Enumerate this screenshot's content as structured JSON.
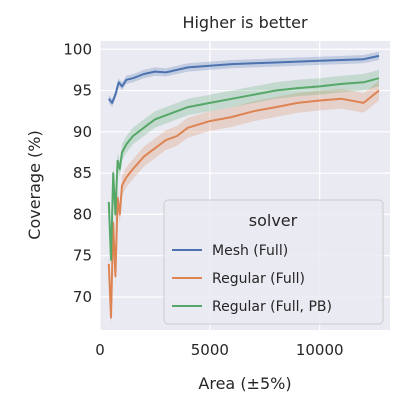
{
  "chart_data": {
    "type": "line",
    "title": "Higher is better",
    "xlabel": "Area (±5%)",
    "ylabel": "Coverage (%)",
    "xlim": [
      0,
      13200
    ],
    "ylim": [
      66,
      101
    ],
    "xticks": [
      0,
      5000,
      10000
    ],
    "yticks": [
      70,
      75,
      80,
      85,
      90,
      95,
      100
    ],
    "grid": true,
    "legend": {
      "title": "solver",
      "placement": "lower-right"
    },
    "series": [
      {
        "name": "Mesh (Full)",
        "color": "#4c72b0",
        "x": [
          400,
          550,
          700,
          850,
          1000,
          1200,
          1500,
          2000,
          2500,
          3000,
          3500,
          4000,
          5000,
          6000,
          7000,
          8000,
          9000,
          10000,
          11000,
          12000,
          12700
        ],
        "y": [
          94.0,
          93.5,
          94.5,
          96.0,
          95.5,
          96.3,
          96.5,
          97.0,
          97.3,
          97.2,
          97.5,
          97.8,
          98.0,
          98.2,
          98.3,
          98.4,
          98.5,
          98.6,
          98.7,
          98.8,
          99.2
        ]
      },
      {
        "name": "Regular (Full)",
        "color": "#dd8452",
        "x": [
          400,
          500,
          600,
          700,
          800,
          900,
          1000,
          1200,
          1500,
          2000,
          2500,
          3000,
          3500,
          4000,
          5000,
          6000,
          7000,
          8000,
          9000,
          10000,
          11000,
          12000,
          12700
        ],
        "y": [
          74.0,
          67.5,
          79.0,
          72.5,
          82.0,
          80.0,
          83.5,
          84.5,
          85.5,
          87.0,
          88.0,
          89.0,
          89.5,
          90.5,
          91.3,
          91.8,
          92.5,
          93.0,
          93.5,
          93.8,
          94.0,
          93.5,
          95.0
        ]
      },
      {
        "name": "Regular (Full, PB)",
        "color": "#55a868",
        "x": [
          400,
          500,
          600,
          700,
          800,
          900,
          1000,
          1200,
          1500,
          2000,
          2500,
          3000,
          3500,
          4000,
          5000,
          6000,
          7000,
          8000,
          9000,
          10000,
          11000,
          12000,
          12700
        ],
        "y": [
          81.5,
          74.5,
          85.0,
          80.0,
          86.5,
          85.5,
          87.5,
          88.5,
          89.5,
          90.5,
          91.5,
          92.0,
          92.5,
          93.0,
          93.5,
          94.0,
          94.5,
          95.0,
          95.3,
          95.5,
          95.8,
          96.0,
          96.5
        ]
      }
    ]
  }
}
